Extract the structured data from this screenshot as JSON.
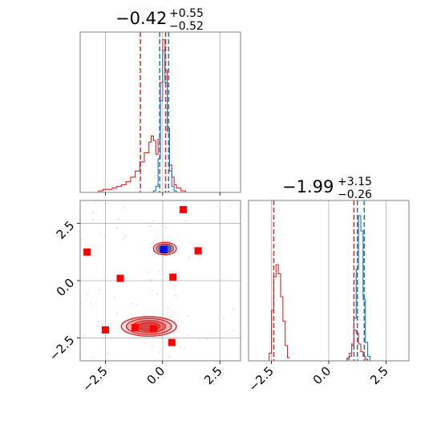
{
  "colors": {
    "blue": "#1f77b4",
    "red": "#d62728",
    "marker_red": "#ff0000",
    "marker_blue": "#0000ff",
    "grid": "#b0b0b0",
    "axes": "#808080"
  },
  "chart_data": [
    {
      "type": "line",
      "panel": "marginal-x",
      "title": {
        "value": "−0.42",
        "plus": "+0.55",
        "minus": "−0.52"
      },
      "xlim": [
        -3.6,
        3.4
      ],
      "ylim": [
        0,
        1.05
      ],
      "grid": true,
      "x": [
        -3.0,
        -2.8,
        -2.6,
        -2.4,
        -2.2,
        -2.0,
        -1.8,
        -1.6,
        -1.4,
        -1.2,
        -1.0,
        -0.8,
        -0.6,
        -0.5,
        -0.4,
        -0.3,
        -0.2,
        -0.1,
        0.0,
        0.1,
        0.2,
        0.3,
        0.4,
        0.5,
        0.6,
        0.8,
        1.0,
        1.2
      ],
      "series": [
        {
          "color_key": "red",
          "values": [
            0.0,
            0.01,
            0.02,
            0.02,
            0.03,
            0.04,
            0.05,
            0.07,
            0.1,
            0.14,
            0.2,
            0.26,
            0.33,
            0.37,
            0.34,
            0.25,
            0.35,
            0.72,
            1.0,
            0.8,
            0.4,
            0.18,
            0.1,
            0.05,
            0.03,
            0.01,
            0.0,
            0.0
          ]
        },
        {
          "color_key": "blue",
          "values": [
            0,
            0,
            0,
            0,
            0,
            0,
            0,
            0,
            0,
            0,
            0,
            0,
            0,
            0,
            0.01,
            0.04,
            0.22,
            0.6,
            0.93,
            0.72,
            0.42,
            0.14,
            0.04,
            0.01,
            0,
            0,
            0,
            0
          ]
        }
      ],
      "vlines": [
        {
          "color_key": "red",
          "x": -0.97
        },
        {
          "color_key": "red",
          "x": 0.13
        },
        {
          "color_key": "blue",
          "x": -0.13
        },
        {
          "color_key": "blue",
          "x": 0.26
        }
      ]
    },
    {
      "type": "scatter",
      "panel": "joint",
      "xlim": [
        -3.6,
        3.4
      ],
      "ylim": [
        -3.5,
        3.5
      ],
      "grid": true,
      "x_ticks": [
        "−2.5",
        "0.0",
        "2.5"
      ],
      "x_tick_values": [
        -2.5,
        0.0,
        2.5
      ],
      "y_ticks": [
        "−2.5",
        "0.0",
        "2.5"
      ],
      "y_tick_values": [
        -2.5,
        0.0,
        2.5
      ],
      "contours": [
        {
          "color_key": "red",
          "cx": -0.6,
          "cy": -2.0,
          "rx": 2.4,
          "ry": 0.85,
          "levels": [
            1.0,
            0.82,
            0.6,
            0.4
          ]
        },
        {
          "color_key": "red",
          "cx": 0.1,
          "cy": 1.4,
          "rx": 1.0,
          "ry": 0.55,
          "levels": [
            1.0,
            0.75,
            0.5
          ]
        },
        {
          "color_key": "blue",
          "cx": 0.1,
          "cy": 1.4,
          "rx": 0.55,
          "ry": 0.32,
          "levels": [
            1.0,
            0.6
          ]
        }
      ],
      "points": [
        {
          "x": 0.9,
          "y": 3.1,
          "color_key": "marker_red"
        },
        {
          "x": -3.3,
          "y": 1.25,
          "color_key": "marker_red"
        },
        {
          "x": 1.55,
          "y": 1.3,
          "color_key": "marker_red"
        },
        {
          "x": -1.85,
          "y": 0.1,
          "color_key": "marker_red"
        },
        {
          "x": 0.45,
          "y": 0.15,
          "color_key": "marker_red"
        },
        {
          "x": -2.5,
          "y": -2.15,
          "color_key": "marker_red"
        },
        {
          "x": -1.2,
          "y": -2.05,
          "color_key": "marker_red"
        },
        {
          "x": -0.4,
          "y": -2.1,
          "color_key": "marker_red"
        },
        {
          "x": 0.4,
          "y": -2.7,
          "color_key": "marker_red"
        },
        {
          "x": 0.05,
          "y": 1.35,
          "color_key": "marker_blue"
        }
      ]
    },
    {
      "type": "line",
      "panel": "marginal-y",
      "title": {
        "value": "−1.99",
        "plus": "+3.15",
        "minus": "−0.26"
      },
      "xlim": [
        -3.5,
        3.5
      ],
      "ylim": [
        0,
        1.05
      ],
      "grid": true,
      "x_ticks": [
        "−2.5",
        "0.0",
        "2.5"
      ],
      "x_tick_values": [
        -2.5,
        0.0,
        2.5
      ],
      "x": [
        -2.8,
        -2.6,
        -2.5,
        -2.4,
        -2.3,
        -2.2,
        -2.1,
        -2.0,
        -1.9,
        -1.8,
        0.6,
        0.8,
        0.9,
        1.0,
        1.1,
        1.2,
        1.3,
        1.4,
        1.5,
        1.6,
        1.7,
        1.8
      ],
      "series": [
        {
          "color_key": "red",
          "values": [
            0.0,
            0.05,
            0.33,
            0.55,
            0.63,
            0.57,
            0.42,
            0.26,
            0.1,
            0.02,
            0.0,
            0.02,
            0.05,
            0.11,
            0.2,
            0.18,
            0.11,
            0.06,
            0.03,
            0.01,
            0.0,
            0.0
          ]
        },
        {
          "color_key": "blue",
          "values": [
            0,
            0,
            0,
            0,
            0,
            0,
            0,
            0,
            0,
            0,
            0.0,
            0.01,
            0.03,
            0.1,
            0.28,
            0.6,
            0.95,
            0.85,
            0.4,
            0.12,
            0.03,
            0.0
          ]
        }
      ],
      "vlines": [
        {
          "color_key": "red",
          "x": -2.4
        },
        {
          "color_key": "red",
          "x": 1.1
        },
        {
          "color_key": "blue",
          "x": 1.25
        },
        {
          "color_key": "blue",
          "x": 1.55
        }
      ]
    }
  ]
}
